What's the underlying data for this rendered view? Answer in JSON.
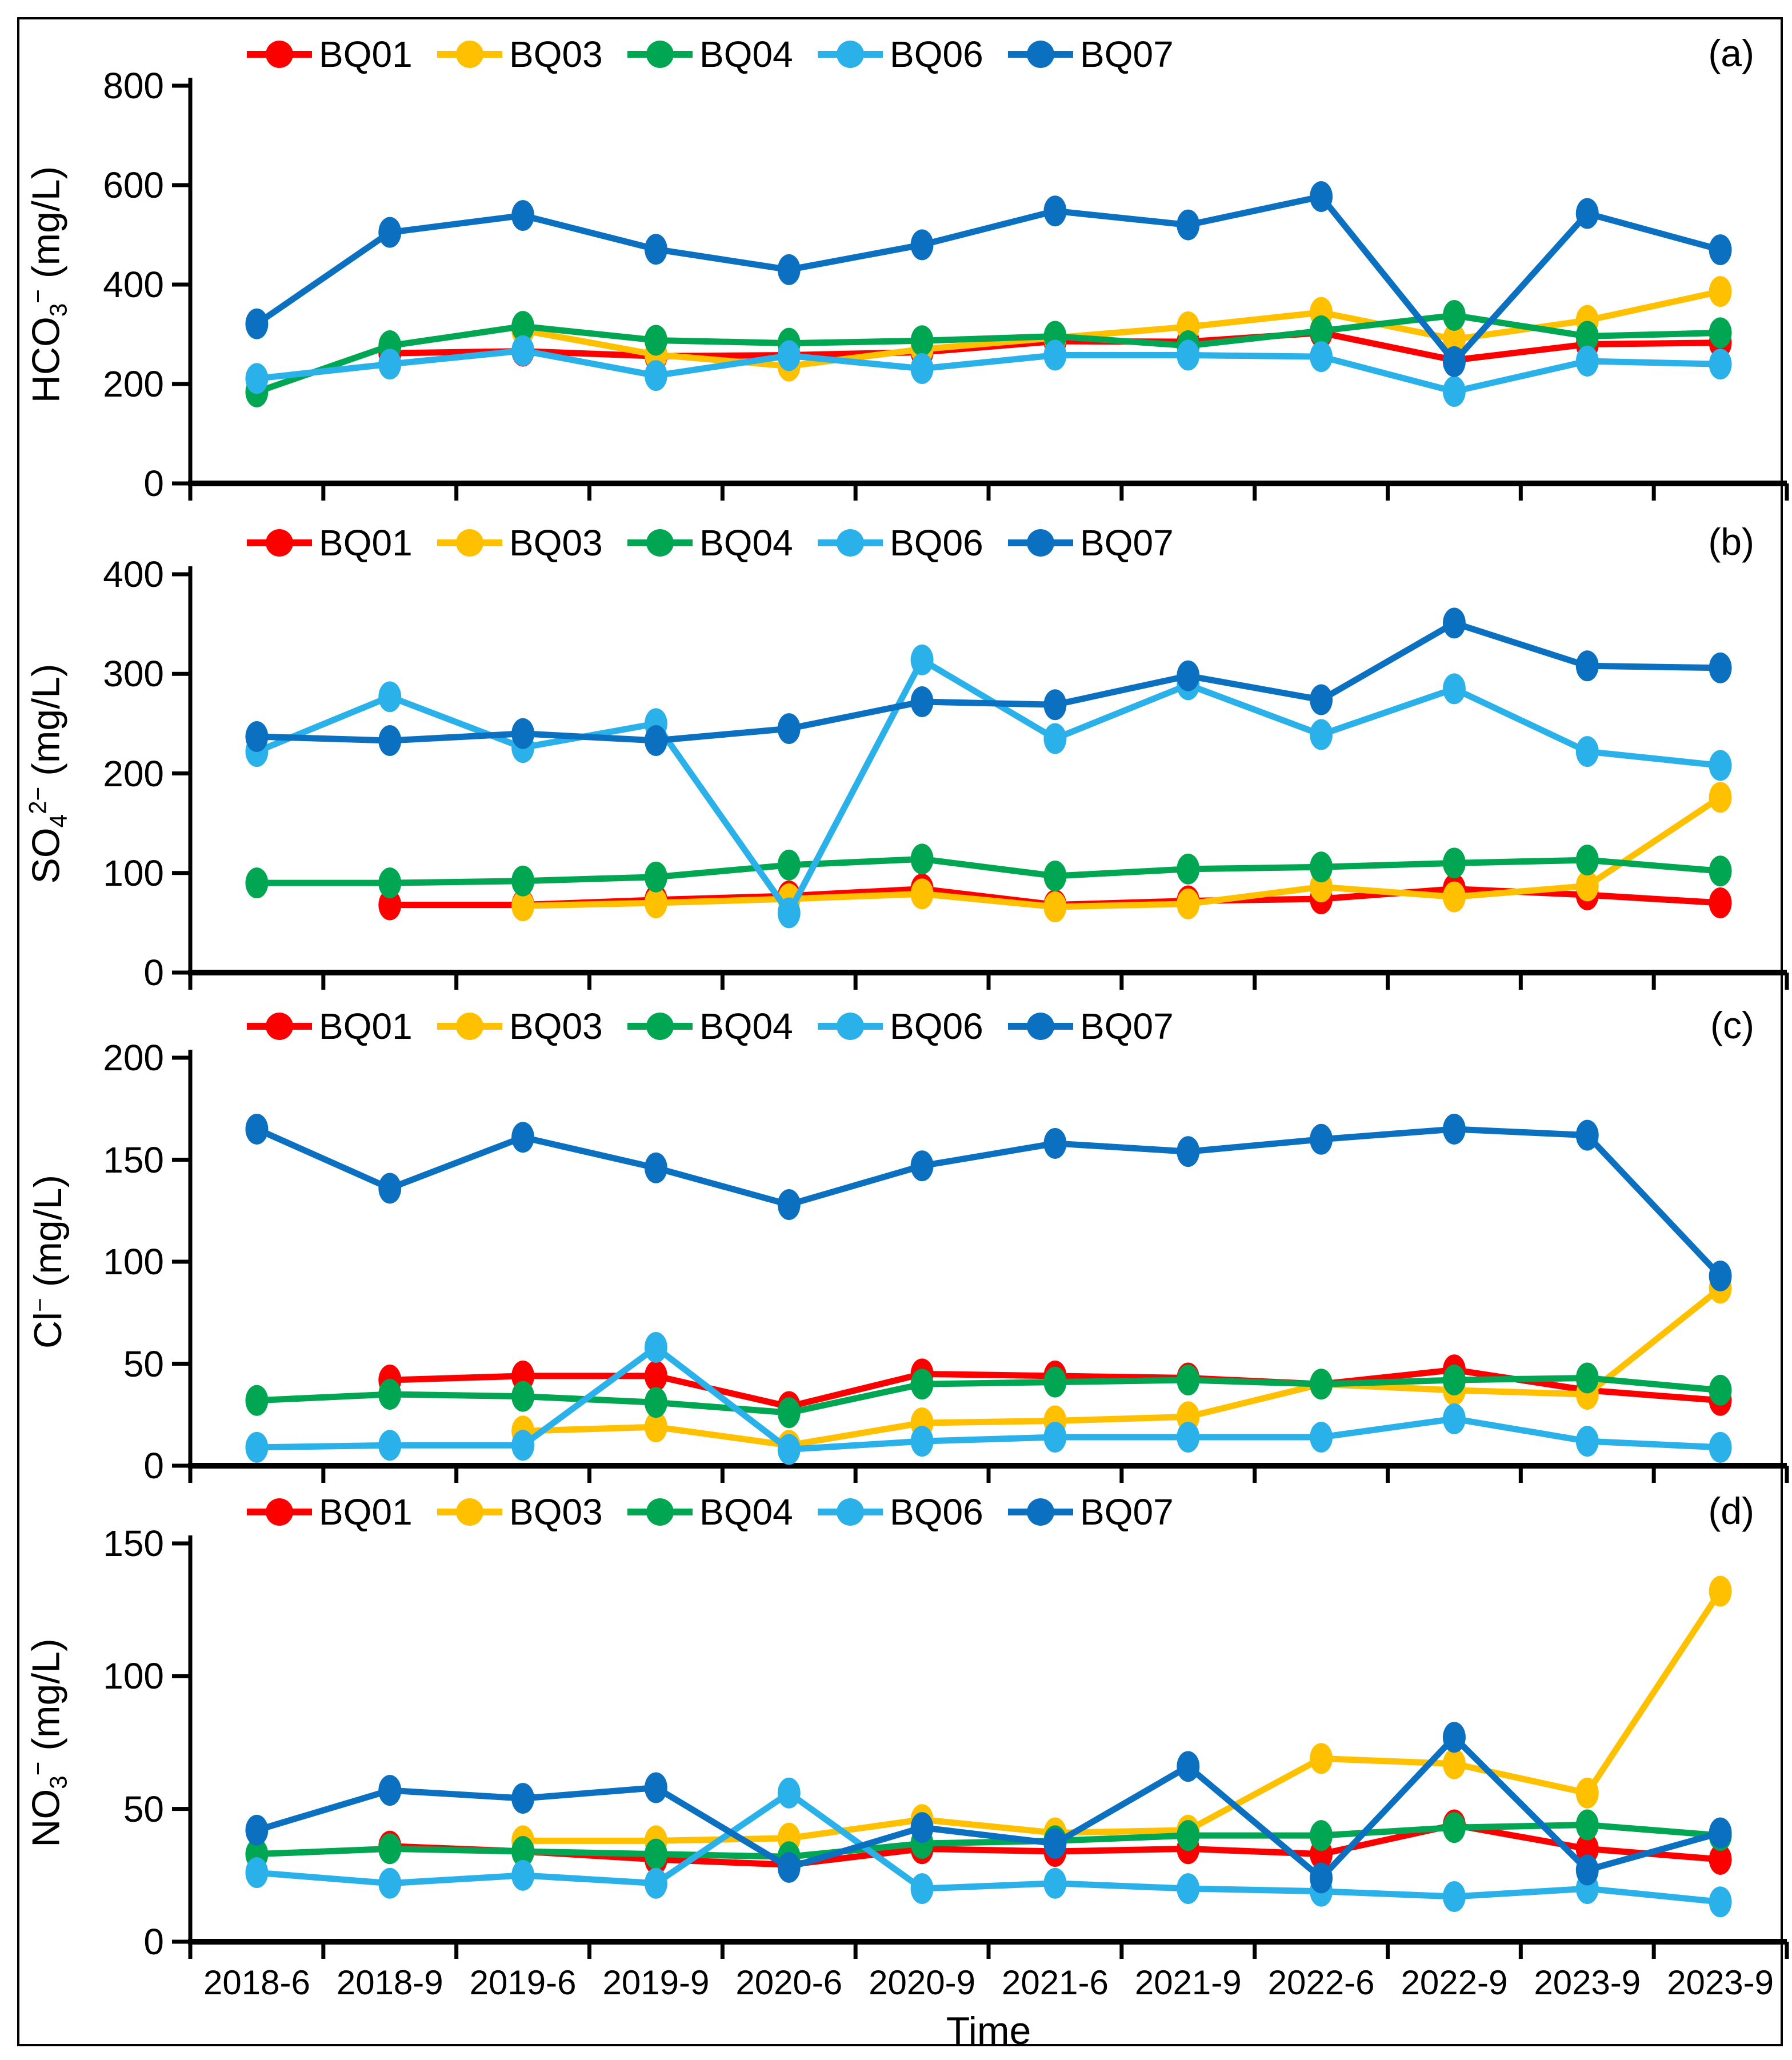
{
  "figure": {
    "x_axis_title": "Time",
    "categories": [
      "2018-6",
      "2018-9",
      "2019-6",
      "2019-9",
      "2020-6",
      "2020-9",
      "2021-6",
      "2021-9",
      "2022-6",
      "2022-9",
      "2023-9",
      "2023-9"
    ],
    "panel_letters": [
      "(a)",
      "(b)",
      "(c)",
      "(d)"
    ],
    "legend": [
      {
        "name": "BQ01",
        "color": "#FC0000"
      },
      {
        "name": "BQ03",
        "color": "#FFC000"
      },
      {
        "name": "BQ04",
        "color": "#00A651"
      },
      {
        "name": "BQ06",
        "color": "#2AB1EA"
      },
      {
        "name": "BQ07",
        "color": "#0C70C0"
      }
    ]
  },
  "chart_data": [
    {
      "type": "line",
      "panel": "(a)",
      "ylabel": "HCO3- (mg/L)",
      "ylabel_parts": [
        {
          "t": "HCO",
          "s": "n"
        },
        {
          "t": "3",
          "s": "sub"
        },
        {
          "t": "−",
          "s": "sup"
        },
        {
          "t": " (mg/L)",
          "s": "n"
        }
      ],
      "ylim": [
        0,
        800
      ],
      "yticks": [
        0,
        200,
        400,
        600,
        800
      ],
      "grid": false,
      "legend_position": "top",
      "categories": [
        "2018-6",
        "2018-9",
        "2019-6",
        "2019-9",
        "2020-6",
        "2020-9",
        "2021-6",
        "2021-9",
        "2022-6",
        "2022-9",
        "2023-9",
        "2023-9"
      ],
      "series": [
        {
          "name": "BQ01",
          "values": [
            null,
            262,
            266,
            256,
            258,
            264,
            286,
            285,
            303,
            248,
            280,
            283
          ]
        },
        {
          "name": "BQ03",
          "values": [
            null,
            null,
            308,
            259,
            236,
            270,
            293,
            315,
            344,
            290,
            328,
            386
          ]
        },
        {
          "name": "BQ04",
          "values": [
            184,
            277,
            316,
            288,
            282,
            287,
            296,
            277,
            307,
            338,
            296,
            303
          ]
        },
        {
          "name": "BQ06",
          "values": [
            211,
            240,
            267,
            217,
            257,
            231,
            258,
            258,
            255,
            185,
            246,
            240
          ]
        },
        {
          "name": "BQ07",
          "values": [
            321,
            505,
            539,
            471,
            430,
            480,
            548,
            520,
            577,
            245,
            543,
            470
          ]
        }
      ]
    },
    {
      "type": "line",
      "panel": "(b)",
      "ylabel": "SO42- (mg/L)",
      "ylabel_parts": [
        {
          "t": "SO",
          "s": "n"
        },
        {
          "t": "4",
          "s": "sub"
        },
        {
          "t": "2−",
          "s": "sup"
        },
        {
          "t": " (mg/L)",
          "s": "n"
        }
      ],
      "ylim": [
        0,
        400
      ],
      "yticks": [
        0,
        100,
        200,
        300,
        400
      ],
      "grid": false,
      "legend_position": "top",
      "categories": [
        "2018-6",
        "2018-9",
        "2019-6",
        "2019-9",
        "2020-6",
        "2020-9",
        "2021-6",
        "2021-9",
        "2022-6",
        "2022-9",
        "2023-9",
        "2023-9"
      ],
      "series": [
        {
          "name": "BQ01",
          "values": [
            null,
            68,
            68,
            73,
            77,
            84,
            68,
            72,
            74,
            84,
            78,
            70
          ]
        },
        {
          "name": "BQ03",
          "values": [
            null,
            null,
            67,
            70,
            74,
            79,
            66,
            69,
            86,
            76,
            87,
            176
          ]
        },
        {
          "name": "BQ04",
          "values": [
            90,
            90,
            92,
            96,
            108,
            114,
            97,
            104,
            106,
            110,
            113,
            102
          ]
        },
        {
          "name": "BQ06",
          "values": [
            222,
            277,
            226,
            250,
            60,
            314,
            235,
            289,
            239,
            285,
            222,
            208
          ]
        },
        {
          "name": "BQ07",
          "values": [
            237,
            233,
            240,
            233,
            245,
            272,
            269,
            298,
            274,
            351,
            308,
            306
          ]
        }
      ]
    },
    {
      "type": "line",
      "panel": "(c)",
      "ylabel": "Cl- (mg/L)",
      "ylabel_parts": [
        {
          "t": "Cl",
          "s": "n"
        },
        {
          "t": "−",
          "s": "sup"
        },
        {
          "t": " (mg/L)",
          "s": "n"
        }
      ],
      "ylim": [
        0,
        200
      ],
      "yticks": [
        0,
        50,
        100,
        150,
        200
      ],
      "grid": false,
      "legend_position": "top",
      "categories": [
        "2018-6",
        "2018-9",
        "2019-6",
        "2019-9",
        "2020-6",
        "2020-9",
        "2021-6",
        "2021-9",
        "2022-6",
        "2022-9",
        "2023-9",
        "2023-9"
      ],
      "series": [
        {
          "name": "BQ01",
          "values": [
            null,
            42,
            44,
            44,
            29,
            45,
            44,
            43,
            40,
            47,
            37,
            32
          ]
        },
        {
          "name": "BQ03",
          "values": [
            null,
            null,
            17,
            19,
            10,
            21,
            22,
            24,
            40,
            37,
            35,
            87
          ]
        },
        {
          "name": "BQ04",
          "values": [
            32,
            35,
            34,
            31,
            26,
            40,
            41,
            42,
            40,
            42,
            43,
            37
          ]
        },
        {
          "name": "BQ06",
          "values": [
            9,
            10,
            10,
            58,
            8,
            12,
            14,
            14,
            14,
            23,
            12,
            9
          ]
        },
        {
          "name": "BQ07",
          "values": [
            165,
            136,
            161,
            146,
            128,
            147,
            158,
            154,
            160,
            165,
            162,
            93
          ]
        }
      ]
    },
    {
      "type": "line",
      "panel": "(d)",
      "ylabel": "NO3- (mg/L)",
      "ylabel_parts": [
        {
          "t": "NO",
          "s": "n"
        },
        {
          "t": "3",
          "s": "sub"
        },
        {
          "t": "−",
          "s": "sup"
        },
        {
          "t": " (mg/L)",
          "s": "n"
        }
      ],
      "ylim": [
        0,
        150
      ],
      "yticks": [
        0,
        50,
        100,
        150
      ],
      "grid": false,
      "legend_position": "top",
      "categories": [
        "2018-6",
        "2018-9",
        "2019-6",
        "2019-9",
        "2020-6",
        "2020-9",
        "2021-6",
        "2021-9",
        "2022-6",
        "2022-9",
        "2023-9",
        "2023-9"
      ],
      "series": [
        {
          "name": "BQ01",
          "values": [
            null,
            36,
            34,
            31,
            29,
            35,
            34,
            35,
            33,
            44,
            35,
            31
          ]
        },
        {
          "name": "BQ03",
          "values": [
            null,
            null,
            38,
            38,
            39,
            46,
            41,
            42,
            69,
            67,
            56,
            132
          ]
        },
        {
          "name": "BQ04",
          "values": [
            33,
            35,
            34,
            33,
            32,
            37,
            38,
            40,
            40,
            43,
            44,
            40
          ]
        },
        {
          "name": "BQ06",
          "values": [
            26,
            22,
            25,
            22,
            56,
            20,
            22,
            20,
            19,
            17,
            20,
            15
          ]
        },
        {
          "name": "BQ07",
          "values": [
            42,
            57,
            54,
            58,
            28,
            43,
            37,
            66,
            24,
            77,
            27,
            41
          ]
        }
      ]
    }
  ]
}
